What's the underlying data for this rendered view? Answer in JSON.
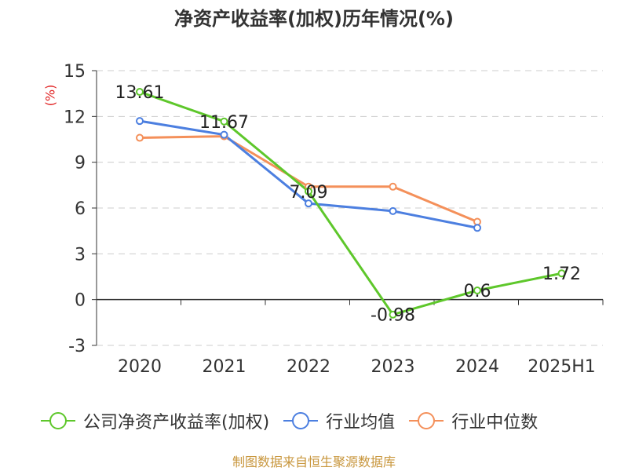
{
  "title": "净资产收益率(加权)历年情况(%)",
  "unit_label": "(%)",
  "source": "制图数据来自恒生聚源数据库",
  "chart_data": {
    "type": "line",
    "title": "净资产收益率(加权)历年情况(%)",
    "ylabel": "(%)",
    "xlabel": "",
    "categories": [
      "2020",
      "2021",
      "2022",
      "2023",
      "2024",
      "2025H1"
    ],
    "ylim": [
      -3,
      15
    ],
    "yticks": [
      -3,
      0,
      3,
      6,
      9,
      12,
      15
    ],
    "grid": true,
    "legend": "bottom",
    "series": [
      {
        "name": "公司净资产收益率(加权)",
        "color": "#5ec72b",
        "values": [
          13.61,
          11.67,
          7.09,
          -0.98,
          0.6,
          1.72
        ],
        "labels": [
          "13.61",
          "11.67",
          "7.09",
          "-0.98",
          "0.6",
          "1.72"
        ]
      },
      {
        "name": "行业均值",
        "color": "#4c7fe0",
        "values": [
          11.7,
          10.8,
          6.3,
          5.8,
          4.7,
          null
        ]
      },
      {
        "name": "行业中位数",
        "color": "#f4905a",
        "values": [
          10.6,
          10.7,
          7.4,
          7.4,
          5.1,
          null
        ]
      }
    ]
  }
}
